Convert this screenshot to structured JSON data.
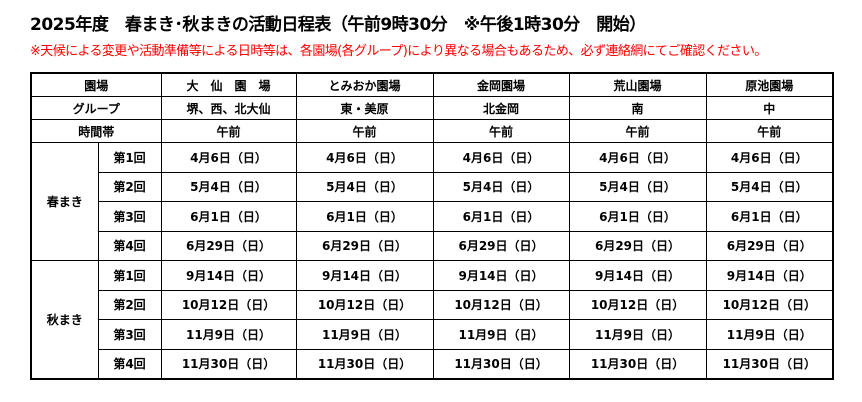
{
  "title": "2025年度　春まき･秋まきの活動日程表（午前9時30分　※午後1時30分　開始）",
  "note": "※天候による変更や活動準備等による日時等は、各園場(各グループ)により異なる場合もあるため、必ず連絡網にてご確認ください。",
  "header": {
    "labels": {
      "venue": "園場",
      "group": "グループ",
      "time": "時間帯"
    },
    "venues": [
      "大　仙　園　場",
      "とみおか園場",
      "金岡園場",
      "荒山園場",
      "原池園場"
    ],
    "groups": [
      "堺、西、北大仙",
      "東・美原",
      "北金岡",
      "南",
      "中"
    ],
    "times": [
      "午前",
      "午前",
      "午前",
      "午前",
      "午前"
    ]
  },
  "seasons": [
    {
      "name": "春まき",
      "rounds": [
        {
          "label": "第1回",
          "dates": [
            "4月6日（日）",
            "4月6日（日）",
            "4月6日（日）",
            "4月6日（日）",
            "4月6日（日）"
          ]
        },
        {
          "label": "第2回",
          "dates": [
            "5月4日（日）",
            "5月4日（日）",
            "5月4日（日）",
            "5月4日（日）",
            "5月4日（日）"
          ]
        },
        {
          "label": "第3回",
          "dates": [
            "6月1日（日）",
            "6月1日（日）",
            "6月1日（日）",
            "6月1日（日）",
            "6月1日（日）"
          ]
        },
        {
          "label": "第4回",
          "dates": [
            "6月29日（日）",
            "6月29日（日）",
            "6月29日（日）",
            "6月29日（日）",
            "6月29日（日）"
          ]
        }
      ]
    },
    {
      "name": "秋まき",
      "rounds": [
        {
          "label": "第1回",
          "dates": [
            "9月14日（日）",
            "9月14日（日）",
            "9月14日（日）",
            "9月14日（日）",
            "9月14日（日）"
          ]
        },
        {
          "label": "第2回",
          "dates": [
            "10月12日（日）",
            "10月12日（日）",
            "10月12日（日）",
            "10月12日（日）",
            "10月12日（日）"
          ]
        },
        {
          "label": "第3回",
          "dates": [
            "11月9日（日）",
            "11月9日（日）",
            "11月9日（日）",
            "11月9日（日）",
            "11月9日（日）"
          ]
        },
        {
          "label": "第4回",
          "dates": [
            "11月30日（日）",
            "11月30日（日）",
            "11月30日（日）",
            "11月30日（日）",
            "11月30日（日）"
          ]
        }
      ]
    }
  ]
}
